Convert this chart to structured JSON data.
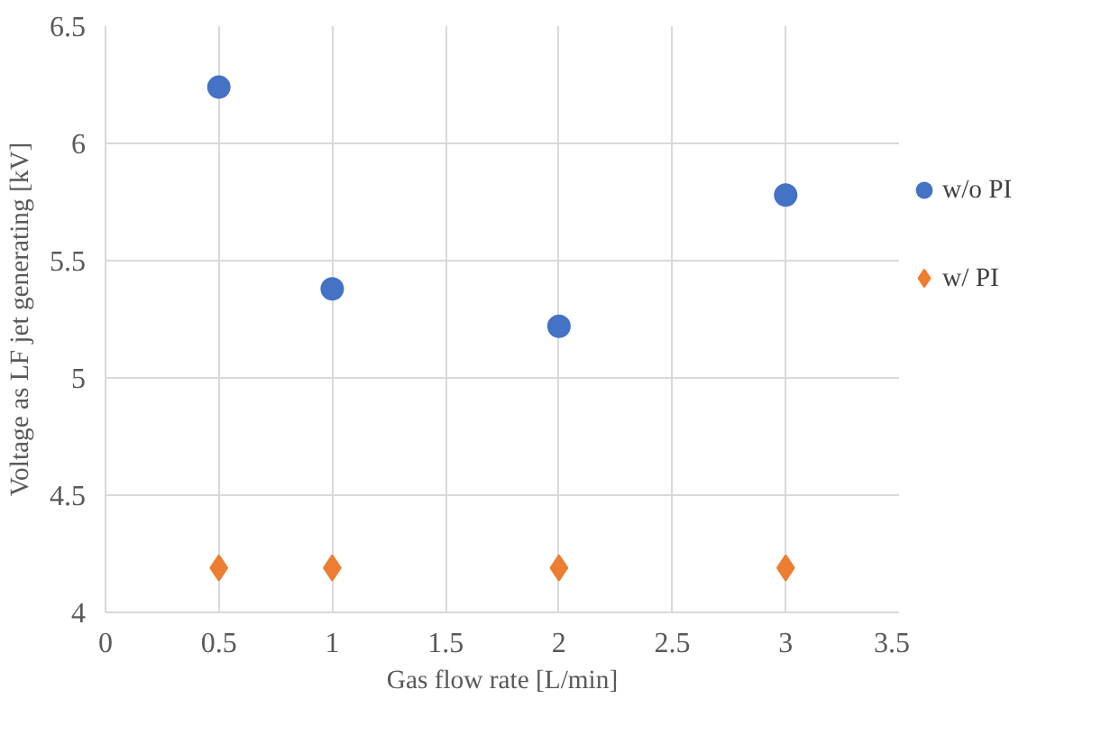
{
  "chart_data": {
    "type": "scatter",
    "xlabel": "Gas flow rate [L/min]",
    "ylabel": "Voltage as LF jet generating [kV]",
    "xlim": [
      0,
      3.5
    ],
    "xticks": [
      0,
      0.5,
      1,
      1.5,
      2,
      2.5,
      3,
      3.5
    ],
    "ylim": [
      4,
      6.5
    ],
    "yticks": [
      4,
      4.5,
      5,
      5.5,
      6,
      6.5
    ],
    "grid": true,
    "legend": "right",
    "series": [
      {
        "name": "w/o PI",
        "color": "#4472c4",
        "marker": "circle",
        "x": [
          0.5,
          1,
          2,
          3
        ],
        "values": [
          6.24,
          5.38,
          5.22,
          5.78
        ]
      },
      {
        "name": "w/ PI",
        "color": "#ed7d31",
        "marker": "diamond",
        "x": [
          0.5,
          1,
          2,
          3
        ],
        "values": [
          4.19,
          4.19,
          4.19,
          4.19
        ]
      }
    ]
  }
}
